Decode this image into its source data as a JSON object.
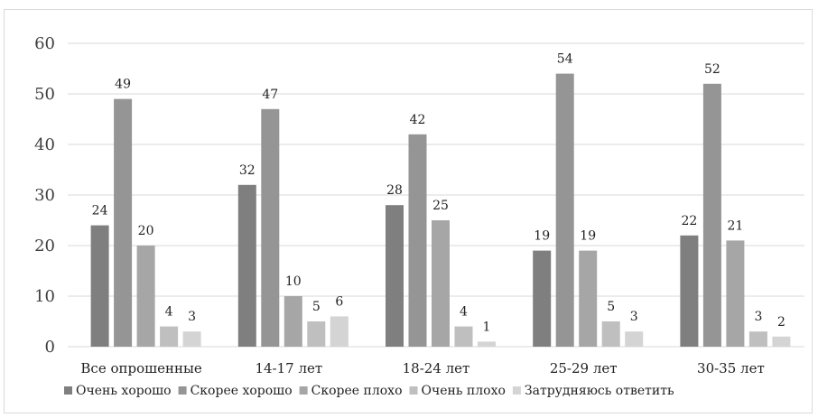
{
  "chart_data": {
    "type": "bar",
    "title": "",
    "xlabel": "",
    "ylabel": "",
    "ylim": [
      0,
      60
    ],
    "yticks": [
      0,
      10,
      20,
      30,
      40,
      50,
      60
    ],
    "grid": true,
    "legend": "bottom",
    "categories": [
      "Все опрошенные",
      "14-17 лет",
      "18-24 лет",
      "25-29 лет",
      "30-35 лет"
    ],
    "series": [
      {
        "name": "Очень хорошо",
        "color": "#7f7f7f",
        "values": [
          24,
          32,
          28,
          19,
          22
        ]
      },
      {
        "name": "Скорее хорошо",
        "color": "#959595",
        "values": [
          49,
          47,
          42,
          54,
          52
        ]
      },
      {
        "name": "Скорее плохо",
        "color": "#a6a6a6",
        "values": [
          20,
          10,
          25,
          19,
          21
        ]
      },
      {
        "name": "Очень плохо",
        "color": "#bfbfbf",
        "values": [
          4,
          5,
          4,
          5,
          3
        ]
      },
      {
        "name": "Затрудняюсь ответить",
        "color": "#d4d4d4",
        "values": [
          3,
          6,
          1,
          3,
          2
        ]
      }
    ]
  }
}
